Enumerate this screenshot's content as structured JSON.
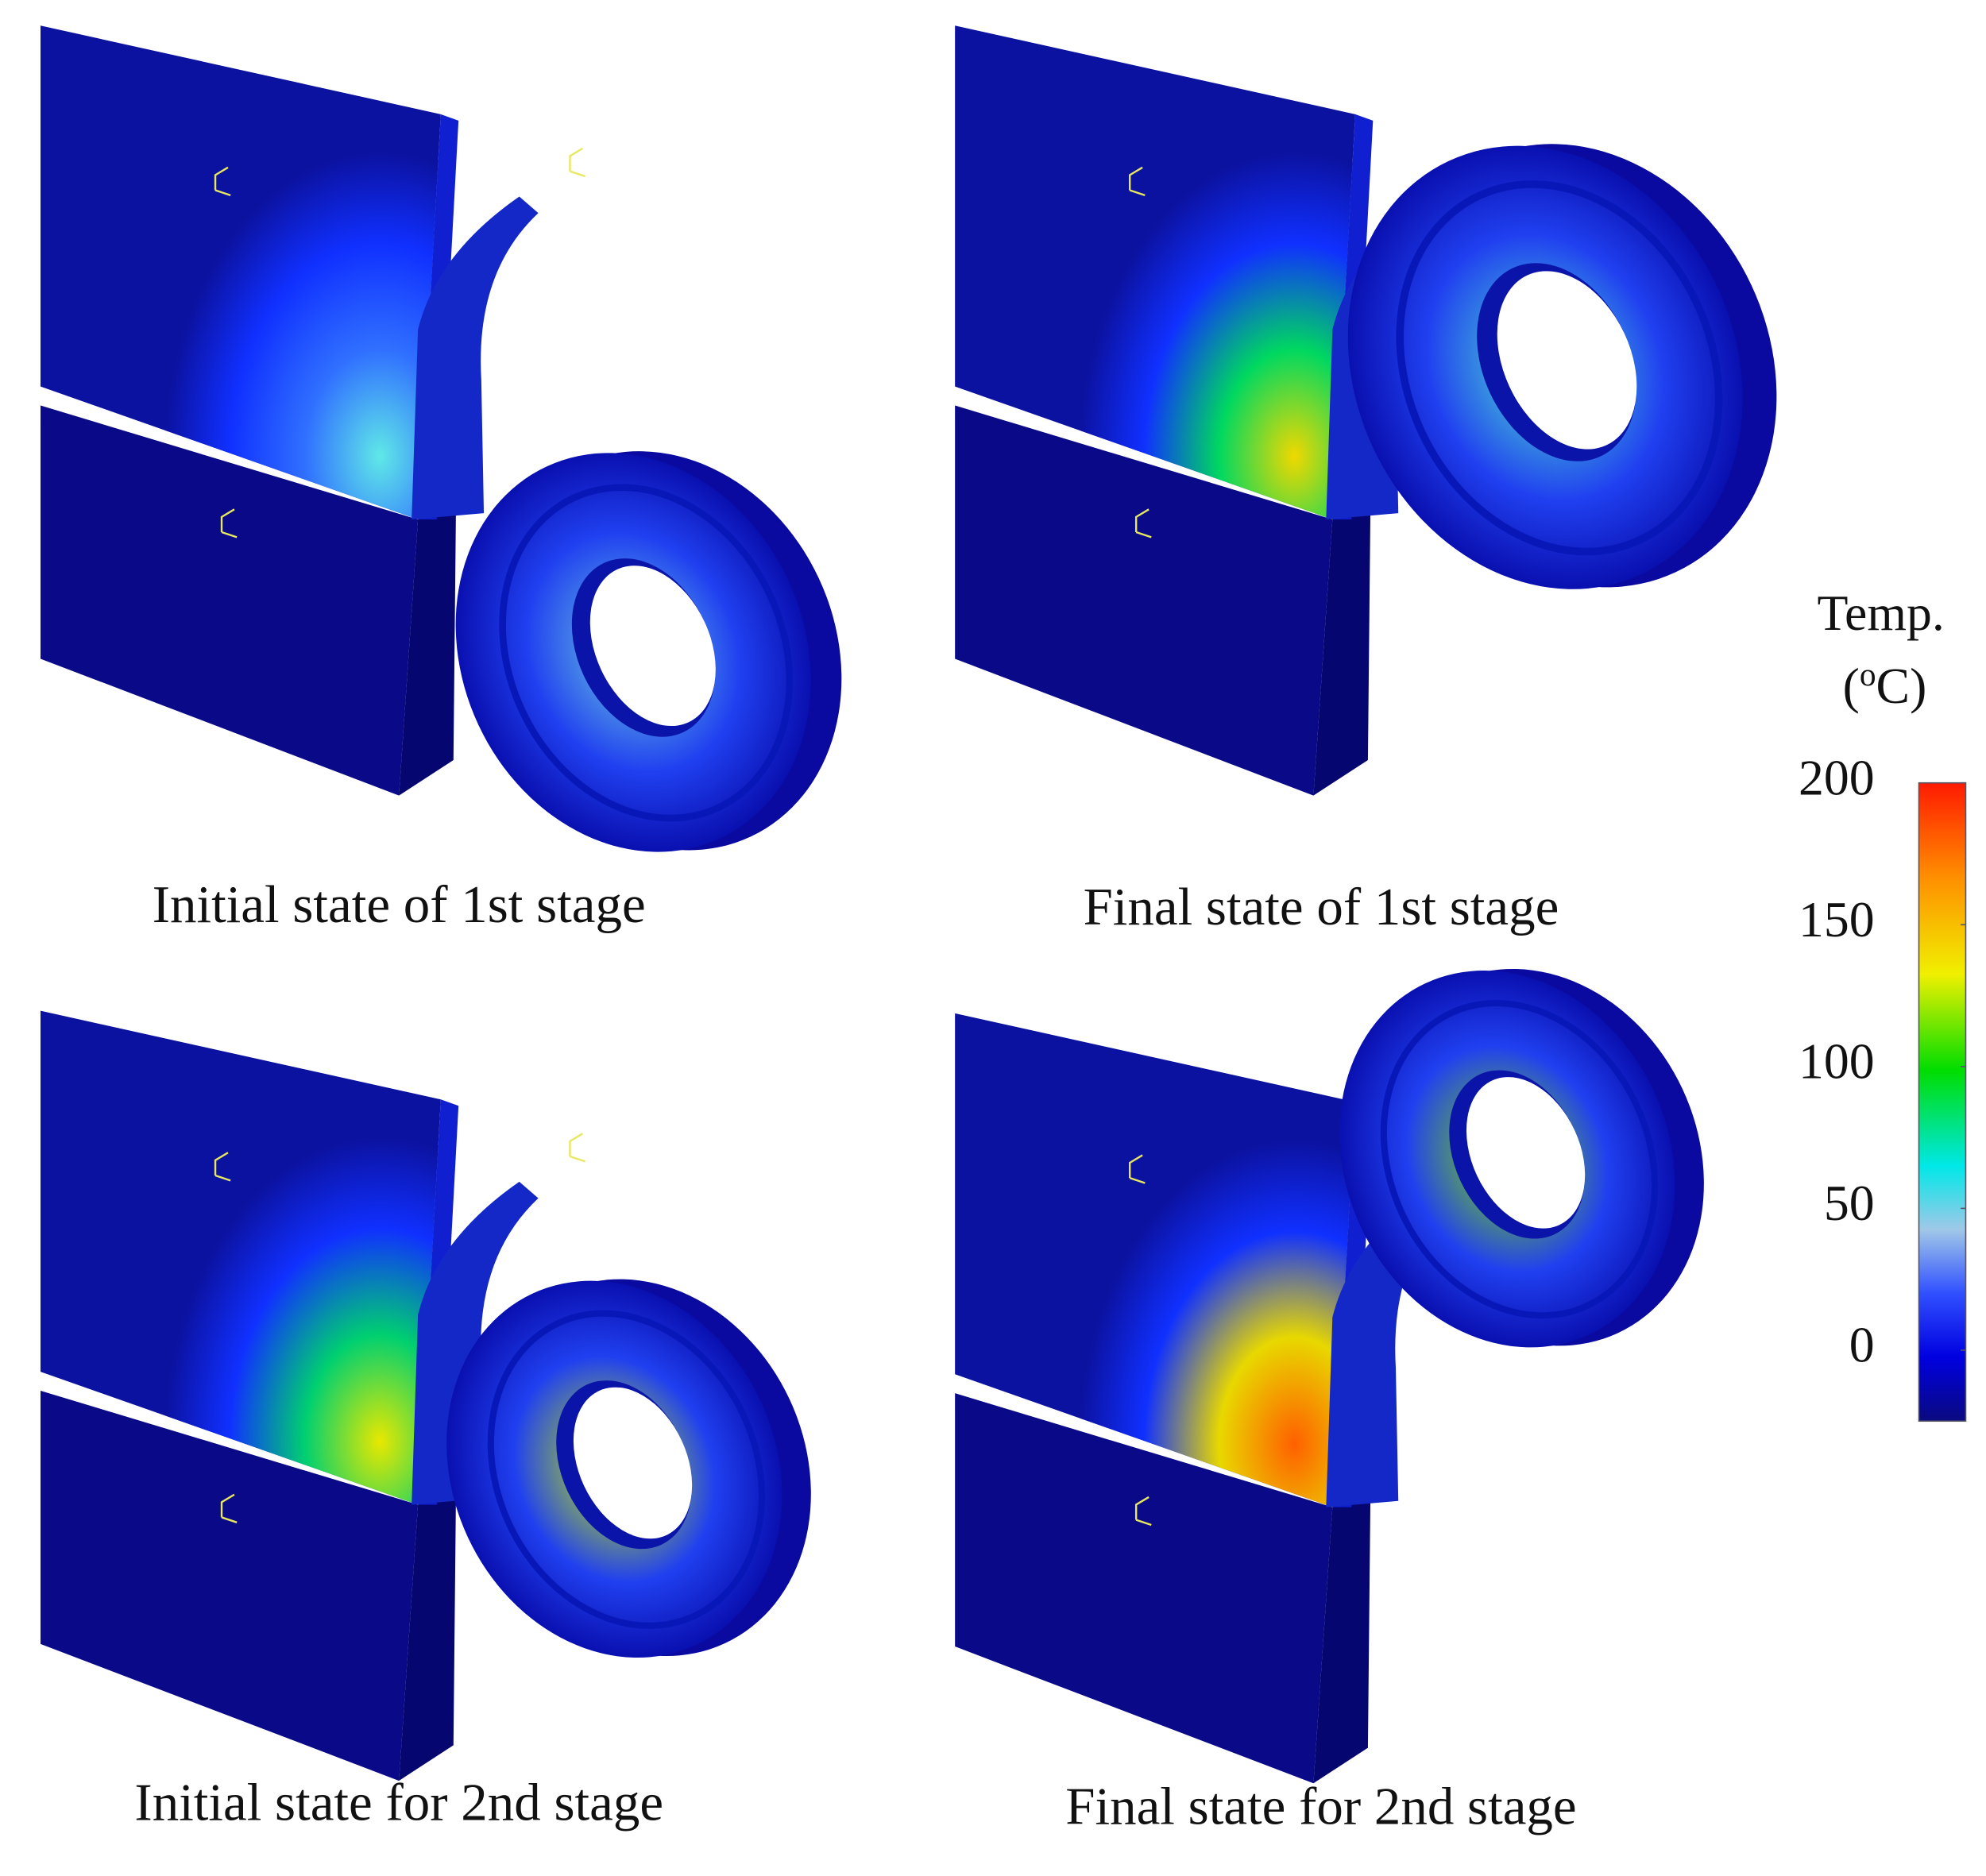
{
  "panels": [
    {
      "caption": "Initial state of 1st stage"
    },
    {
      "caption": "Final state of 1st stage"
    },
    {
      "caption": "Initial state for 2nd stage"
    },
    {
      "caption": "Final state for 2nd stage"
    }
  ],
  "colorbar": {
    "title": "Temp.",
    "unit": [
      "(",
      "o",
      "C)"
    ],
    "range": [
      -25,
      200
    ],
    "ticks": [
      0,
      50,
      100,
      150,
      200
    ]
  }
}
